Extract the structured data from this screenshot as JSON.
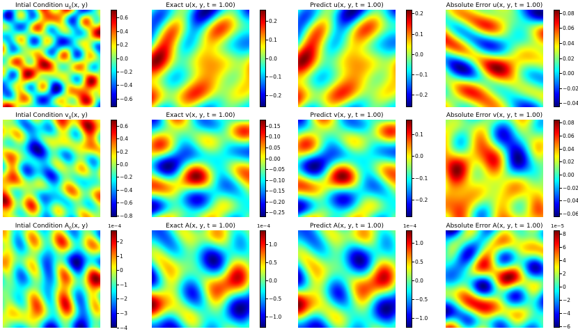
{
  "chart_data": [
    {
      "type": "heatmap",
      "title": "Intial Condition $u_0(x, y)$",
      "title_text": "Intial Condition u",
      "title_sub": "0",
      "title_tail": "(x, y)",
      "seed": 1,
      "sharp": 1.2,
      "colorbar": {
        "range": [
          -0.72,
          0.72
        ],
        "ticks": [
          "0.6",
          "0.4",
          "0.2",
          "0.0",
          "−0.2",
          "−0.4",
          "−0.6"
        ],
        "tick_values": [
          0.6,
          0.4,
          0.2,
          0.0,
          -0.2,
          -0.4,
          -0.6
        ],
        "multiplier": ""
      }
    },
    {
      "type": "heatmap",
      "title_text": "Exact u(x, y, t = 1.00)",
      "title_sub": "",
      "title_tail": "",
      "seed": 2,
      "sharp": 0.6,
      "colorbar": {
        "range": [
          -0.26,
          0.26
        ],
        "ticks": [
          "0.2",
          "0.1",
          "0.0",
          "−0.1",
          "−0.2"
        ],
        "tick_values": [
          0.2,
          0.1,
          0.0,
          -0.1,
          -0.2
        ],
        "multiplier": ""
      }
    },
    {
      "type": "heatmap",
      "title_text": "Predict u(x, y, t = 1.00)",
      "title_sub": "",
      "title_tail": "",
      "seed": 2,
      "sharp": 0.6,
      "colorbar": {
        "range": [
          -0.26,
          0.22
        ],
        "ticks": [
          "0.2",
          "0.1",
          "0.0",
          "−0.1",
          "−0.2"
        ],
        "tick_values": [
          0.2,
          0.1,
          0.0,
          -0.1,
          -0.2
        ],
        "multiplier": ""
      }
    },
    {
      "type": "heatmap",
      "title_text": "Absolute Error u(x, y, t = 1.00)",
      "title_sub": "",
      "title_tail": "",
      "seed": 3,
      "sharp": 0.7,
      "colorbar": {
        "range": [
          -0.045,
          0.085
        ],
        "ticks": [
          "0.08",
          "0.06",
          "0.04",
          "0.02",
          "0.00",
          "−0.02",
          "−0.04"
        ],
        "tick_values": [
          0.08,
          0.06,
          0.04,
          0.02,
          0.0,
          -0.02,
          -0.04
        ],
        "multiplier": ""
      }
    },
    {
      "type": "heatmap",
      "title_text": "Intial Condition v",
      "title_sub": "0",
      "title_tail": "(x, y)",
      "seed": 4,
      "sharp": 1.2,
      "colorbar": {
        "range": [
          -0.82,
          0.7
        ],
        "ticks": [
          "0.6",
          "0.4",
          "0.2",
          "0.0",
          "−0.2",
          "−0.4",
          "−0.6",
          "−0.8"
        ],
        "tick_values": [
          0.6,
          0.4,
          0.2,
          0.0,
          -0.2,
          -0.4,
          -0.6,
          -0.8
        ],
        "multiplier": ""
      }
    },
    {
      "type": "heatmap",
      "title_text": "Exact v(x, y, t = 1.00)",
      "title_sub": "",
      "title_tail": "",
      "seed": 5,
      "sharp": 0.6,
      "colorbar": {
        "range": [
          -0.27,
          0.18
        ],
        "ticks": [
          "0.15",
          "0.10",
          "0.05",
          "0.00",
          "−0.05",
          "−0.10",
          "−0.15",
          "−0.20",
          "−0.25"
        ],
        "tick_values": [
          0.15,
          0.1,
          0.05,
          0.0,
          -0.05,
          -0.1,
          -0.15,
          -0.2,
          -0.25
        ],
        "multiplier": ""
      }
    },
    {
      "type": "heatmap",
      "title_text": "Predict v(x, y, t = 1.00)",
      "title_sub": "",
      "title_tail": "",
      "seed": 5,
      "sharp": 0.6,
      "colorbar": {
        "range": [
          -0.28,
          0.17
        ],
        "ticks": [
          "0.1",
          "0.0",
          "−0.1",
          "−0.2"
        ],
        "tick_values": [
          0.1,
          0.0,
          -0.1,
          -0.2
        ],
        "multiplier": ""
      }
    },
    {
      "type": "heatmap",
      "title_text": "Absolute Error v(x, y, t = 1.00)",
      "title_sub": "",
      "title_tail": "",
      "seed": 6,
      "sharp": 0.7,
      "colorbar": {
        "range": [
          -0.065,
          0.085
        ],
        "ticks": [
          "0.08",
          "0.06",
          "0.04",
          "0.02",
          "0.00",
          "−0.02",
          "−0.04",
          "−0.06"
        ],
        "tick_values": [
          0.08,
          0.06,
          0.04,
          0.02,
          0.0,
          -0.02,
          -0.04,
          -0.06
        ],
        "multiplier": ""
      }
    },
    {
      "type": "heatmap",
      "title_text": "Intial Condition A",
      "title_sub": "0",
      "title_tail": "(x, y)",
      "seed": 7,
      "sharp": 0.9,
      "colorbar": {
        "range": [
          -4.0,
          2.8
        ],
        "ticks": [
          "2",
          "1",
          "0",
          "−1",
          "−2",
          "−3",
          "−4"
        ],
        "tick_values": [
          2,
          1,
          0,
          -1,
          -2,
          -3,
          -4
        ],
        "multiplier": "1e−4"
      }
    },
    {
      "type": "heatmap",
      "title_text": "Exact A(x, y, t = 1.00)",
      "title_sub": "",
      "title_tail": "",
      "seed": 8,
      "sharp": 0.6,
      "colorbar": {
        "range": [
          -1.3,
          1.4
        ],
        "ticks": [
          "1.0",
          "0.5",
          "0.0",
          "−0.5",
          "−1.0"
        ],
        "tick_values": [
          1.0,
          0.5,
          0.0,
          -0.5,
          -1.0
        ],
        "multiplier": "1e−4"
      }
    },
    {
      "type": "heatmap",
      "title_text": "Predict A(x, y, t = 1.00)",
      "title_sub": "",
      "title_tail": "",
      "seed": 8,
      "sharp": 0.6,
      "colorbar": {
        "range": [
          -1.25,
          1.35
        ],
        "ticks": [
          "1.0",
          "0.5",
          "0.0",
          "−0.5",
          "−1.0"
        ],
        "tick_values": [
          1.0,
          0.5,
          0.0,
          -0.5,
          -1.0
        ],
        "multiplier": "1e−4"
      }
    },
    {
      "type": "heatmap",
      "title_text": "Absolute Error A(x, y, t = 1.00)",
      "title_sub": "",
      "title_tail": "",
      "seed": 9,
      "sharp": 0.7,
      "colorbar": {
        "range": [
          -6.2,
          8.6
        ],
        "ticks": [
          "8",
          "6",
          "4",
          "2",
          "0",
          "−2",
          "−4",
          "−6"
        ],
        "tick_values": [
          8,
          6,
          4,
          2,
          0,
          -2,
          -4,
          -6
        ],
        "multiplier": "1e−5"
      }
    }
  ],
  "colormap": "jet"
}
